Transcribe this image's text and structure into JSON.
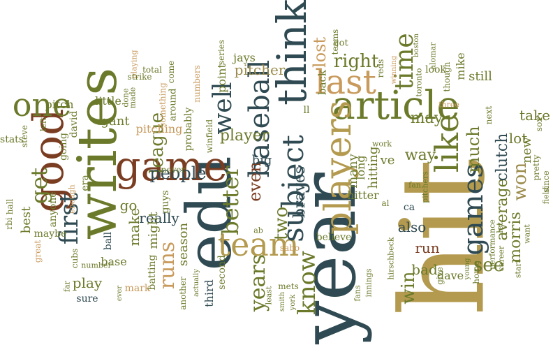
{
  "palette": {
    "olive": "#6b7a2a",
    "slate": "#2f4a52",
    "rust": "#7a3d22",
    "gold": "#b39a4e",
    "tan": "#c89a5c",
    "khaki": "#9a8a4a"
  },
  "words": [
    {
      "text": "hit",
      "color": "gold"
    },
    {
      "text": "year",
      "color": "slate"
    },
    {
      "text": "edu",
      "color": "slate"
    },
    {
      "text": "writes",
      "color": "olive"
    },
    {
      "text": "good",
      "color": "rust"
    },
    {
      "text": "game",
      "color": "rust"
    },
    {
      "text": "article",
      "color": "olive"
    },
    {
      "text": "think",
      "color": "slate"
    },
    {
      "text": "players",
      "color": "gold"
    },
    {
      "text": "last",
      "color": "tan"
    },
    {
      "text": "like",
      "color": "olive"
    },
    {
      "text": "team",
      "color": "gold"
    },
    {
      "text": "one",
      "color": "olive"
    },
    {
      "text": "subject",
      "color": "slate"
    },
    {
      "text": "baseball",
      "color": "slate"
    },
    {
      "text": "games",
      "color": "slate"
    },
    {
      "text": "time",
      "color": "olive"
    },
    {
      "text": "first",
      "color": "slate"
    },
    {
      "text": "well",
      "color": "slate"
    },
    {
      "text": "better",
      "color": "olive"
    },
    {
      "text": "get",
      "color": "olive"
    },
    {
      "text": "know",
      "color": "olive"
    },
    {
      "text": "years",
      "color": "olive"
    },
    {
      "text": "runs",
      "color": "tan"
    },
    {
      "text": "right",
      "color": "olive"
    },
    {
      "text": "league",
      "color": "olive"
    },
    {
      "text": "people",
      "color": "slate"
    },
    {
      "text": "two",
      "color": "olive"
    },
    {
      "text": "much",
      "color": "olive"
    },
    {
      "text": "see",
      "color": "olive"
    },
    {
      "text": "win",
      "color": "olive"
    },
    {
      "text": "player",
      "color": "olive"
    },
    {
      "text": "even",
      "color": "rust"
    },
    {
      "text": "braves",
      "color": "slate"
    },
    {
      "text": "pitcher",
      "color": "khaki"
    },
    {
      "text": "morris",
      "color": "olive"
    },
    {
      "text": "won",
      "color": "khaki"
    },
    {
      "text": "average",
      "color": "olive"
    },
    {
      "text": "clutch",
      "color": "slate"
    },
    {
      "text": "really",
      "color": "slate"
    },
    {
      "text": "season",
      "color": "olive"
    },
    {
      "text": "lost",
      "color": "tan"
    },
    {
      "text": "may",
      "color": "olive"
    },
    {
      "text": "way",
      "color": "olive"
    },
    {
      "text": "still",
      "color": "olive"
    },
    {
      "text": "make",
      "color": "olive"
    },
    {
      "text": "might",
      "color": "olive"
    },
    {
      "text": "also",
      "color": "slate"
    },
    {
      "text": "run",
      "color": "rust"
    },
    {
      "text": "bad",
      "color": "olive"
    },
    {
      "text": "go",
      "color": "olive"
    },
    {
      "text": "play",
      "color": "olive"
    },
    {
      "text": "hitting",
      "color": "olive"
    },
    {
      "text": "lot",
      "color": "olive"
    },
    {
      "text": "take",
      "color": "olive"
    },
    {
      "text": "new",
      "color": "olive"
    },
    {
      "text": "many",
      "color": "olive"
    },
    {
      "text": "long",
      "color": "olive"
    },
    {
      "text": "ve",
      "color": "olive"
    },
    {
      "text": "best",
      "color": "olive"
    },
    {
      "text": "pitching",
      "color": "tan"
    },
    {
      "text": "gant",
      "color": "olive"
    },
    {
      "text": "little",
      "color": "olive"
    },
    {
      "text": "pitch",
      "color": "olive"
    },
    {
      "text": "big",
      "color": "slate"
    },
    {
      "text": "point",
      "color": "olive"
    },
    {
      "text": "jays",
      "color": "olive"
    },
    {
      "text": "third",
      "color": "slate"
    },
    {
      "text": "second",
      "color": "olive"
    },
    {
      "text": "hitter",
      "color": "olive"
    },
    {
      "text": "believe",
      "color": "olive"
    },
    {
      "text": "dave",
      "color": "olive"
    },
    {
      "text": "base",
      "color": "olive"
    },
    {
      "text": "mark",
      "color": "tan"
    },
    {
      "text": "ball",
      "color": "slate"
    },
    {
      "text": "sure",
      "color": "slate"
    },
    {
      "text": "batting",
      "color": "olive"
    },
    {
      "text": "maybe",
      "color": "olive"
    },
    {
      "text": "anyone",
      "color": "olive"
    },
    {
      "text": "going",
      "color": "olive"
    },
    {
      "text": "david",
      "color": "olive"
    },
    {
      "text": "era",
      "color": "olive"
    },
    {
      "text": "guys",
      "color": "olive"
    },
    {
      "text": "probably",
      "color": "olive"
    },
    {
      "text": "something",
      "color": "tan"
    },
    {
      "text": "around",
      "color": "olive"
    },
    {
      "text": "never",
      "color": "olive"
    },
    {
      "text": "cubs",
      "color": "olive"
    },
    {
      "text": "number",
      "color": "olive"
    },
    {
      "text": "great",
      "color": "tan"
    },
    {
      "text": "rbi",
      "color": "olive"
    },
    {
      "text": "hall",
      "color": "olive"
    },
    {
      "text": "stats",
      "color": "olive"
    },
    {
      "text": "steve",
      "color": "olive"
    },
    {
      "text": "left",
      "color": "olive"
    },
    {
      "text": "far",
      "color": "olive"
    },
    {
      "text": "enough",
      "color": "tan"
    },
    {
      "text": "ever",
      "color": "olive"
    },
    {
      "text": "made",
      "color": "olive"
    },
    {
      "text": "done",
      "color": "olive"
    },
    {
      "text": "playing",
      "color": "tan"
    },
    {
      "text": "total",
      "color": "olive"
    },
    {
      "text": "strike",
      "color": "olive"
    },
    {
      "text": "come",
      "color": "olive"
    },
    {
      "text": "numbers",
      "color": "tan"
    },
    {
      "text": "winfield",
      "color": "olive"
    },
    {
      "text": "series",
      "color": "olive"
    },
    {
      "text": "another",
      "color": "olive"
    },
    {
      "text": "actually",
      "color": "olive"
    },
    {
      "text": "smith",
      "color": "olive"
    },
    {
      "text": "york",
      "color": "olive"
    },
    {
      "text": "least",
      "color": "olive"
    },
    {
      "text": "ab",
      "color": "olive"
    },
    {
      "text": "sabo",
      "color": "tan"
    },
    {
      "text": "mets",
      "color": "olive"
    },
    {
      "text": "innings",
      "color": "olive"
    },
    {
      "text": "fans",
      "color": "olive"
    },
    {
      "text": "hirschbeck",
      "color": "olive"
    },
    {
      "text": "ca",
      "color": "slate"
    },
    {
      "text": "al",
      "color": "olive"
    },
    {
      "text": "fan",
      "color": "olive"
    },
    {
      "text": "pitchers",
      "color": "olive"
    },
    {
      "text": "work",
      "color": "olive"
    },
    {
      "text": "toronto",
      "color": "olive"
    },
    {
      "text": "back",
      "color": "olive"
    },
    {
      "text": "teams",
      "color": "olive"
    },
    {
      "text": "got",
      "color": "olive"
    },
    {
      "text": "reds",
      "color": "olive"
    },
    {
      "text": "winning",
      "color": "tan"
    },
    {
      "text": "look",
      "color": "olive"
    },
    {
      "text": "three",
      "color": "tan"
    },
    {
      "text": "though",
      "color": "olive"
    },
    {
      "text": "alomar",
      "color": "olive"
    },
    {
      "text": "boston",
      "color": "olive"
    },
    {
      "text": "mike",
      "color": "olive"
    },
    {
      "text": "next",
      "color": "olive"
    },
    {
      "text": "sox",
      "color": "olive"
    },
    {
      "text": "performance",
      "color": "olive"
    },
    {
      "text": "give",
      "color": "olive"
    },
    {
      "text": "young",
      "color": "olive"
    },
    {
      "text": "home",
      "color": "olive"
    },
    {
      "text": "let",
      "color": "olive"
    },
    {
      "text": "career",
      "color": "olive"
    },
    {
      "text": "start",
      "color": "olive"
    },
    {
      "text": "want",
      "color": "olive"
    },
    {
      "text": "pretty",
      "color": "olive"
    },
    {
      "text": "since",
      "color": "olive"
    },
    {
      "text": "field",
      "color": "olive"
    },
    {
      "text": "ll",
      "color": "olive"
    }
  ]
}
